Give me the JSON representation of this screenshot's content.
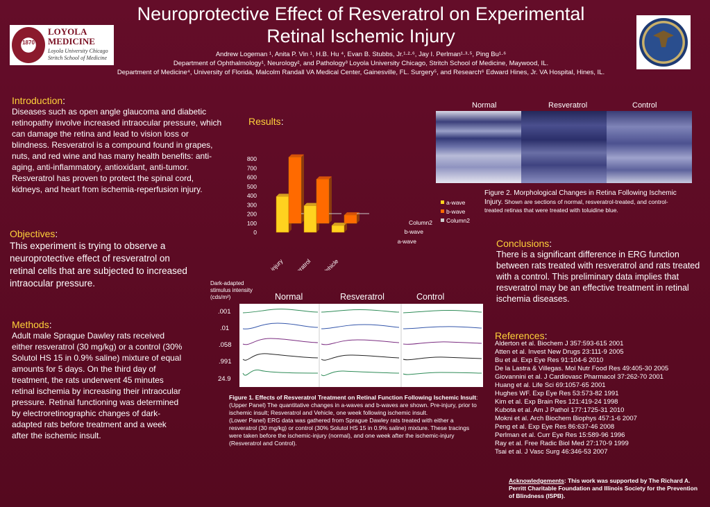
{
  "header": {
    "title_line1": "Neuroprotective Effect of Resveratrol on Experimental",
    "title_line2": "Retinal Ischemic Injury",
    "authors": "Andrew Logeman ¹,  Anita P. Vin ¹, H.B. Hu ⁴, Evan B. Stubbs, Jr.¹·²·⁶, Jay I. Perlman¹·³·⁵, Ping Bu¹·⁶",
    "affil1": "Department of Ophthalmology¹, Neurology², and Pathology³ Loyola University Chicago,  Stritch School of Medicine, Maywood, IL.",
    "affil2": "Department of Medicine⁴, University of Florida, Malcolm Randall VA Medical Center, Gainesville, FL.  Surgery⁵, and Research⁶  Edward Hines, Jr. VA Hospital, Hines, IL."
  },
  "logo_left": {
    "name1": "LOYOLA",
    "name2": "MEDICINE",
    "sub1": "Loyola University Chicago",
    "sub2": "Stritch School of Medicine",
    "year": "1870"
  },
  "intro": {
    "heading": "Introduction",
    "colon": ":",
    "body": "Diseases such as open angle glaucoma and diabetic retinopathy involve increased intraocular pressure, which can damage the retina and lead to vision loss or blindness. Resveratrol is a compound found in grapes, nuts, and red wine and has many health benefits: anti-aging, anti-inflammatory, antioxidant, anti-tumor. Resveratrol has proven to protect the spinal cord, kidneys, and heart from ischemia-reperfusion injury."
  },
  "objectives": {
    "heading": "Objectives",
    "colon": ":",
    "body": "This experiment is trying to observe a neuroprotective effect of resveratrol on retinal cells that are subjected to increased intraocular pressure."
  },
  "methods": {
    "heading": "Methods",
    "colon": ":",
    "body": "Adult male Sprague Dawley rats received either resveratrol (30 mg/kg) or a control (30% Solutol HS 15 in 0.9% saline) mixture of equal amounts for 5 days. On the third day of treatment, the rats underwent 45 minutes retinal ischemia by increasing their intraocular pressure. Retinal functioning was determined by electroretinographic changes of dark-adapted rats before treatment and a week after the ischemic insult."
  },
  "results": {
    "heading": "Results",
    "colon": ":"
  },
  "chart_data": {
    "type": "bar",
    "categories": [
      "Pre-injury",
      "Resveratrol",
      "Vehicle"
    ],
    "series": [
      {
        "name": "a-wave",
        "color": "#ffd21f",
        "values": [
          390,
          290,
          75
        ]
      },
      {
        "name": "b-wave",
        "color": "#ff6a00",
        "values": [
          720,
          480,
          90
        ]
      },
      {
        "name": "Column2",
        "color": "#cccccc",
        "values": [
          0,
          0,
          0
        ]
      }
    ],
    "yticks": [
      "800",
      "700",
      "600",
      "500",
      "400",
      "300",
      "200",
      "100",
      "0"
    ],
    "ylim": [
      0,
      800
    ],
    "depth_labels": [
      "Column2",
      "b-wave",
      "a-wave"
    ],
    "legend_position": "right"
  },
  "erg": {
    "stimulus_label": "Dark-adapted stimulus intensity (cds/m²)",
    "col_normal": "Normal",
    "col_resveratrol": "Resveratrol",
    "col_control": "Control",
    "intensities": [
      ".001",
      ".01",
      ".058",
      ".991",
      "24.9"
    ]
  },
  "fig1": {
    "title": "Figure 1. Effects of Resveratrol Treatment on Retinal Function Following Ischemic Insult",
    "upper": ": (Upper Panel) The quantitative changes in a-waves and b-waves are shown. Pre-injury, prior to ischemic insult; Resveratrol and Vehicle, one week following ischemic insult.",
    "lower": "(Lower Panel) ERG data was gathered from Sprague Dawley rats treated with either a resveratrol (30 mg/kg) or control (30% Solutol HS 15 in 0.9% saline) mixture. These tracings were taken before the ischemic-injury (normal), and one week after the ischemic-injury (Resveratrol and Control)."
  },
  "histology": {
    "label_normal": "Normal",
    "label_resveratrol": "Resveratrol",
    "label_control": "Control"
  },
  "fig2": {
    "lead": "Figure 2. Morphological Changes in Retina Following Ischemic Injury.",
    "body": " Shown are sections of normal, resveratrol-treated, and control-treated retinas that were treated with toluidine blue."
  },
  "conclusions": {
    "heading": "Conclusions",
    "colon": ":",
    "body": "There is a significant difference in ERG function between rats treated with resveratrol and rats treated with a control. This preliminary data implies that resveratrol may be an effective treatment in retinal ischemia diseases."
  },
  "references": {
    "heading": "References",
    "colon": ":",
    "items": [
      "Alderton et al. Biochem J 357:593-615 2001",
      "Atten et al. Invest New Drugs 23:111-9 2005",
      "Bu et al. Exp Eye Res 91:104-6 2010",
      "De la Lastra & Villegas. Mol Nutr Food Res 49:405-30 2005",
      "Giovannini et al. J Cardiovasc Pharmacol 37:262-70 2001",
      "Huang et al. Life Sci 69:1057-65 2001",
      "Hughes WF. Exp Eye Res 53:573-82 1991",
      "Kim et al. Exp Brain Res 121:419-24 1998",
      "Kubota et al. Am J Pathol 177:1725-31 2010",
      "Mokni et al. Arch Biochem Biophys 457:1-6 2007",
      "Peng et al. Exp Eye Res 86:637-46 2008",
      "Perlman et al. Curr Eye Res 15:589-96 1996",
      "Ray et al. Free Radic Biol Med 27:170-9 1999",
      "Tsai et al.  J Vasc Surg 46:346-53 2007"
    ]
  },
  "ack": {
    "heading": "Acknowledgements",
    "body": ": This work was supported by The Richard A. Perritt Charitable Foundation and Illinois Society for the Prevention of Blindness (ISPB)."
  }
}
